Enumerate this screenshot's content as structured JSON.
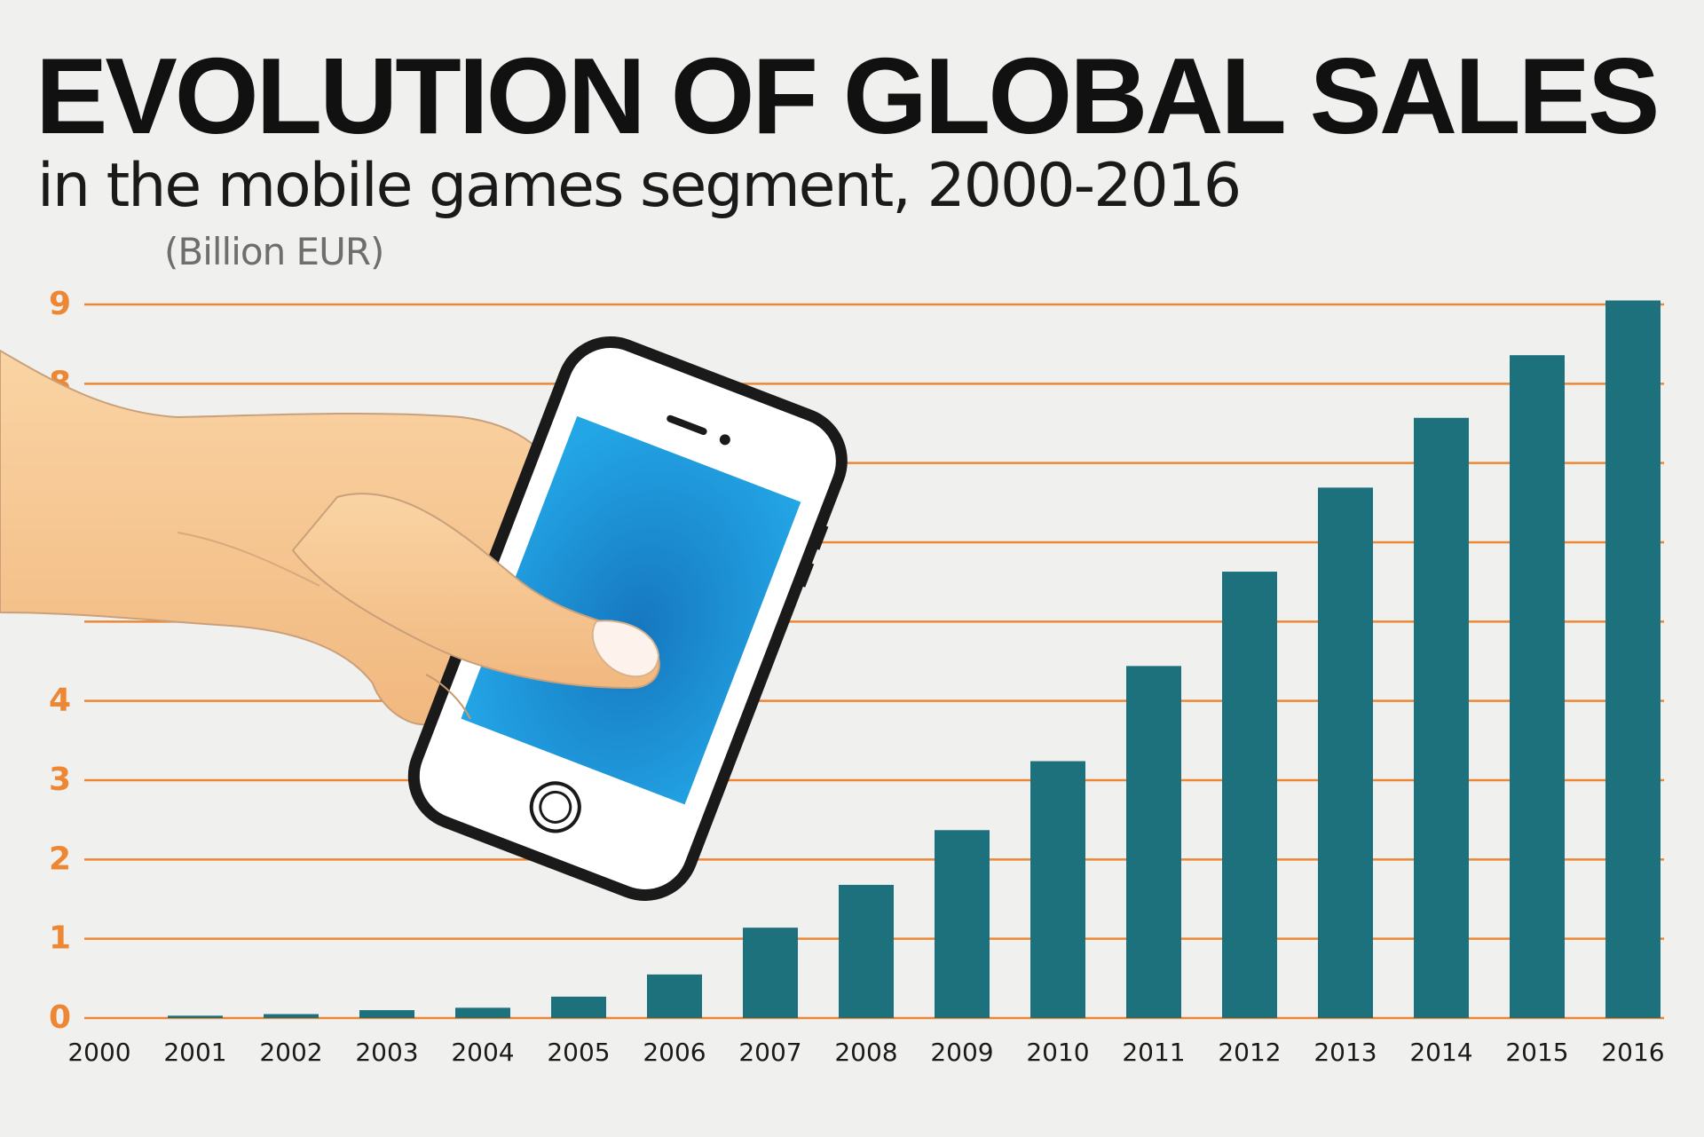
{
  "colors": {
    "background": "#f0f0ef",
    "bar": "#1c717d",
    "grid": "#ee8734",
    "tick": "#ee8734",
    "phone_screen": "#1d94d6",
    "skin": "#f7c48c"
  },
  "illustration": {
    "description_icon": "hand-holding-smartphone-icon"
  },
  "chart_data": {
    "type": "bar",
    "title": "EVOLUTION OF GLOBAL SALES",
    "subtitle": "in the mobile games segment, 2000-2016",
    "unit": "(Billion EUR)",
    "ylim": [
      0,
      9
    ],
    "yticks": [
      "0",
      "1",
      "2",
      "3",
      "4",
      "8",
      "9"
    ],
    "grid": true,
    "categories": [
      "2000",
      "2001",
      "2002",
      "2003",
      "2004",
      "2005",
      "2006",
      "2007",
      "2008",
      "2009",
      "2010",
      "2011",
      "2012",
      "2013",
      "2014",
      "2015",
      "2016"
    ],
    "values": [
      0.0,
      0.03,
      0.05,
      0.1,
      0.13,
      0.27,
      0.55,
      1.14,
      1.68,
      2.37,
      3.24,
      4.44,
      5.63,
      6.69,
      7.57,
      8.36,
      9.05
    ]
  }
}
